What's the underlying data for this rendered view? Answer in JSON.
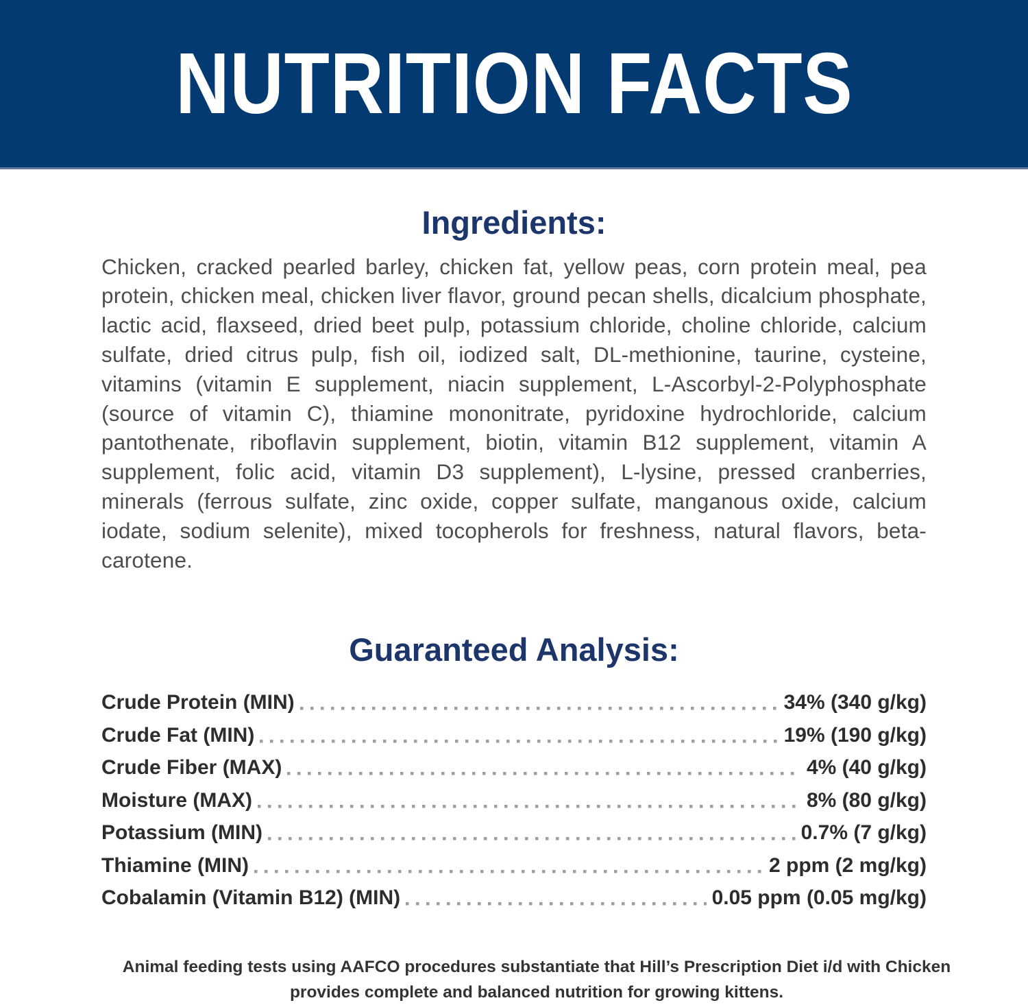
{
  "banner": {
    "title": "NUTRITION FACTS"
  },
  "ingredients": {
    "heading": "Ingredients:",
    "text": "Chicken, cracked pearled barley, chicken fat, yellow peas, corn protein meal, pea protein, chicken meal, chicken liver flavor, ground pecan shells, dicalcium phosphate, lactic acid, flaxseed, dried beet pulp, potassium chloride, choline chloride, calcium sulfate, dried citrus pulp, fish oil, iodized salt, DL-methionine, taurine, cysteine, vitamins (vitamin E supplement, niacin supplement, L-Ascorbyl-2-Polyphosphate (source of vitamin C), thiamine mononitrate, pyridoxine hydrochloride, calcium pantothenate, riboflavin supplement, biotin, vitamin B12 supplement, vitamin A supplement, folic acid, vitamin D3 supplement), L-lysine, pressed cranberries, minerals (ferrous sulfate, zinc oxide, copper sulfate, manganous oxide, calcium iodate, sodium selenite), mixed tocopherols for freshness, natural flavors, beta-carotene."
  },
  "analysis": {
    "heading": "Guaranteed Analysis:",
    "rows": [
      {
        "label": "Crude Protein (MIN)",
        "value": "34% (340 g/kg)"
      },
      {
        "label": "Crude Fat (MIN)",
        "value": "19% (190 g/kg)"
      },
      {
        "label": "Crude Fiber (MAX)",
        "value": "4% (40 g/kg)"
      },
      {
        "label": "Moisture (MAX)",
        "value": "8% (80 g/kg)"
      },
      {
        "label": "Potassium (MIN)",
        "value": "0.7% (7 g/kg)"
      },
      {
        "label": "Thiamine (MIN)",
        "value": "2 ppm (2 mg/kg)"
      },
      {
        "label": "Cobalamin (Vitamin B12) (MIN)",
        "value": "0.05 ppm (0.05 mg/kg)"
      }
    ]
  },
  "footer": {
    "statement": "Animal feeding tests using AAFCO procedures substantiate that Hill’s Prescription Diet i/d with Chicken provides complete and balanced nutrition for growing kittens."
  },
  "colors": {
    "banner_navy": "#043a72",
    "banner_edge": "#63769d",
    "heading_navy": "#1c356a",
    "body_gray": "#4d4d4d",
    "row_dark": "#2d2d2d",
    "dots_gray": "#9f9f9f",
    "banner_text": "#ffffff"
  }
}
